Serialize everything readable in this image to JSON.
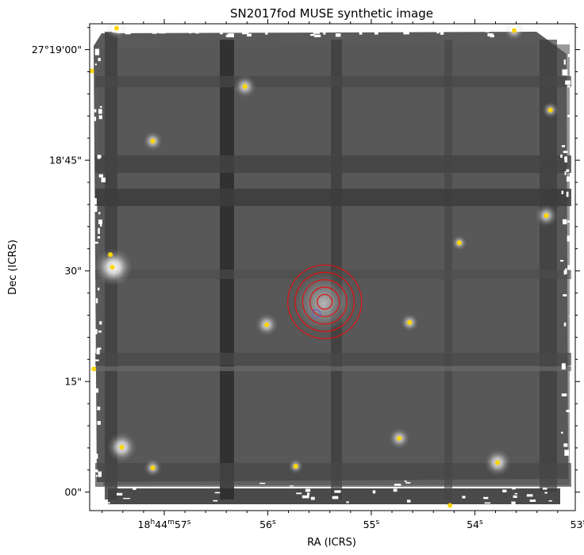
{
  "chart_data": {
    "type": "image",
    "title": "SN2017fod MUSE synthetic image",
    "xlabel": "RA (ICRS)",
    "ylabel": "Dec (ICRS)",
    "colormap": "grayscale",
    "x_ticks": [
      {
        "label": "18h44m57s",
        "ra_s": 57.0
      },
      {
        "label": "56s",
        "ra_s": 56.0
      },
      {
        "label": "55s",
        "ra_s": 55.0
      },
      {
        "label": "54s",
        "ra_s": 54.0
      },
      {
        "label": "53s",
        "ra_s": 53.0
      }
    ],
    "y_ticks": [
      {
        "label": "27°19'00\"",
        "dec_arcsec": 60
      },
      {
        "label": "18'45\"",
        "dec_arcsec": 45
      },
      {
        "label": "30\"",
        "dec_arcsec": 30
      },
      {
        "label": "15\"",
        "dec_arcsec": 15
      },
      {
        "label": "00\"",
        "dec_arcsec": 0
      }
    ],
    "xlim_ra_s": [
      57.72,
      53.03
    ],
    "ylim_dec_arcsec": [
      -2.5,
      63.5
    ],
    "marker_colors": {
      "star": "#ffd700",
      "circle": "#e01010",
      "small_circle": "#6a5acd"
    },
    "stars": [
      {
        "ra": 57.46,
        "dec": 62.9
      },
      {
        "ra": 57.7,
        "dec": 57.1
      },
      {
        "ra": 56.22,
        "dec": 55.0
      },
      {
        "ra": 53.62,
        "dec": 62.6
      },
      {
        "ra": 53.27,
        "dec": 51.8
      },
      {
        "ra": 57.11,
        "dec": 47.6
      },
      {
        "ra": 53.31,
        "dec": 37.5
      },
      {
        "ra": 54.15,
        "dec": 33.8
      },
      {
        "ra": 57.52,
        "dec": 32.2
      },
      {
        "ra": 57.5,
        "dec": 30.5
      },
      {
        "ra": 56.01,
        "dec": 22.7
      },
      {
        "ra": 54.63,
        "dec": 23.0
      },
      {
        "ra": 57.68,
        "dec": 16.7
      },
      {
        "ra": 54.73,
        "dec": 7.3
      },
      {
        "ra": 57.41,
        "dec": 6.1
      },
      {
        "ra": 57.11,
        "dec": 3.3
      },
      {
        "ra": 55.73,
        "dec": 3.5
      },
      {
        "ra": 53.78,
        "dec": 4.0
      },
      {
        "ra": 54.24,
        "dec": -1.8
      }
    ],
    "bright_sources": [
      {
        "ra": 57.49,
        "dec": 30.5,
        "strength": 1.0
      },
      {
        "ra": 57.41,
        "dec": 6.1,
        "strength": 0.7
      },
      {
        "ra": 53.78,
        "dec": 4.0,
        "strength": 0.6
      },
      {
        "ra": 56.22,
        "dec": 55.0,
        "strength": 0.45
      },
      {
        "ra": 53.31,
        "dec": 37.5,
        "strength": 0.45
      },
      {
        "ra": 56.01,
        "dec": 22.7,
        "strength": 0.45
      },
      {
        "ra": 54.73,
        "dec": 7.3,
        "strength": 0.4
      },
      {
        "ra": 57.46,
        "dec": 62.9,
        "strength": 0.4
      },
      {
        "ra": 53.62,
        "dec": 62.6,
        "strength": 0.35
      },
      {
        "ra": 57.11,
        "dec": 47.6,
        "strength": 0.35
      },
      {
        "ra": 54.63,
        "dec": 23.0,
        "strength": 0.3
      },
      {
        "ra": 57.11,
        "dec": 3.3,
        "strength": 0.3
      },
      {
        "ra": 55.73,
        "dec": 3.5,
        "strength": 0.2
      },
      {
        "ra": 53.27,
        "dec": 51.8,
        "strength": 0.25
      },
      {
        "ra": 54.15,
        "dec": 33.8,
        "strength": 0.2
      }
    ],
    "host_galaxy": {
      "ra": 55.46,
      "dec": 25.6
    },
    "sn_circles": {
      "ra": 55.45,
      "dec": 25.8,
      "radii_arcsec": [
        1.0,
        2.0,
        3.0,
        4.0,
        5.0
      ]
    },
    "small_circle": {
      "ra": 55.53,
      "dec": 24.2,
      "radius_arcsec": 0.55
    }
  }
}
